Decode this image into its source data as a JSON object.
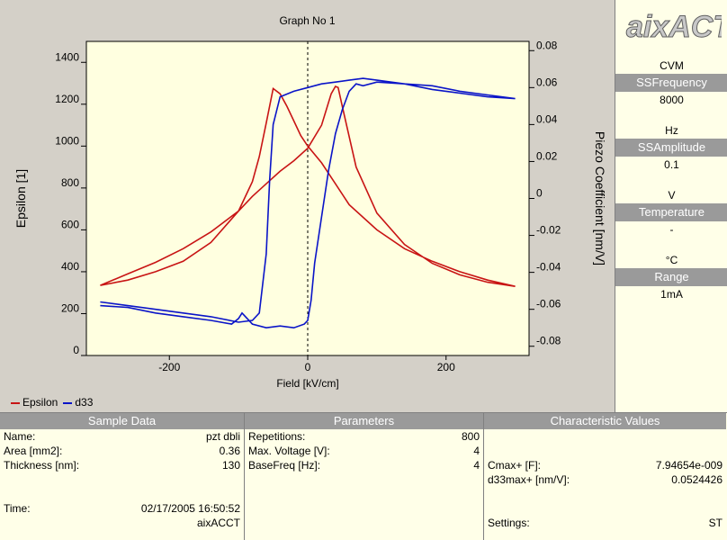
{
  "graph": {
    "title": "Graph No 1",
    "legend": [
      {
        "label": "Epsilon",
        "color": "#c81414"
      },
      {
        "label": "d33",
        "color": "#0a14c8"
      }
    ]
  },
  "chart_data": {
    "type": "line",
    "title": "Graph No 1",
    "xlabel": "Field [kV/cm]",
    "ylabel": "Epsilon [1]",
    "y2label": "Piezo Coefficient [nm/V]",
    "xlim": [
      -320,
      320
    ],
    "ylim": [
      0,
      1500
    ],
    "y2lim": [
      -0.085,
      0.085
    ],
    "xticks": [
      "-200",
      "0",
      "200"
    ],
    "xtick_values": [
      -200,
      0,
      200
    ],
    "yticks": [
      "0",
      "200",
      "400",
      "600",
      "800",
      "1000",
      "1200",
      "1400"
    ],
    "ytick_values": [
      0,
      200,
      400,
      600,
      800,
      1000,
      1200,
      1400
    ],
    "y2ticks": [
      "-0.08",
      "-0.06",
      "-0.04",
      "-0.02",
      "0",
      "0.02",
      "0.04",
      "0.06",
      "0.08"
    ],
    "y2tick_values": [
      -0.08,
      -0.06,
      -0.04,
      -0.02,
      0,
      0.02,
      0.04,
      0.06,
      0.08
    ],
    "grid": false,
    "vline_at": 0,
    "legend_position": "bottom-left",
    "series": [
      {
        "name": "Epsilon",
        "axis": "left",
        "color": "#c81414",
        "x": [
          -300,
          -260,
          -220,
          -180,
          -140,
          -100,
          -80,
          -70,
          -60,
          -50,
          -40,
          -30,
          -20,
          -10,
          0,
          20,
          40,
          60,
          100,
          140,
          180,
          220,
          260,
          300,
          260,
          220,
          180,
          140,
          100,
          70,
          50,
          44,
          40,
          34,
          20,
          0,
          -20,
          -40,
          -60,
          -80,
          -100,
          -140,
          -180,
          -220,
          -260,
          -300
        ],
        "y": [
          335,
          360,
          400,
          450,
          540,
          690,
          830,
          950,
          1110,
          1275,
          1250,
          1190,
          1120,
          1050,
          1000,
          920,
          820,
          720,
          600,
          510,
          450,
          400,
          360,
          330,
          350,
          385,
          440,
          530,
          680,
          900,
          1190,
          1280,
          1285,
          1250,
          1100,
          990,
          930,
          880,
          820,
          760,
          690,
          590,
          510,
          445,
          390,
          335
        ]
      },
      {
        "name": "d33",
        "axis": "right",
        "color": "#0a14c8",
        "x": [
          -300,
          -260,
          -220,
          -180,
          -140,
          -110,
          -100,
          -95,
          -80,
          -60,
          -40,
          -20,
          -5,
          0,
          5,
          10,
          20,
          30,
          40,
          50,
          60,
          70,
          80,
          100,
          140,
          180,
          220,
          260,
          300,
          260,
          220,
          180,
          140,
          100,
          80,
          60,
          40,
          20,
          0,
          -20,
          -40,
          -50,
          -55,
          -60,
          -70,
          -80,
          -100,
          -140,
          -180,
          -220,
          -260,
          -300
        ],
        "y": [
          -0.058,
          -0.059,
          -0.062,
          -0.064,
          -0.066,
          -0.068,
          -0.065,
          -0.062,
          -0.068,
          -0.07,
          -0.069,
          -0.07,
          -0.068,
          -0.066,
          -0.055,
          -0.035,
          -0.01,
          0.015,
          0.035,
          0.048,
          0.058,
          0.062,
          0.061,
          0.063,
          0.062,
          0.061,
          0.058,
          0.056,
          0.054,
          0.055,
          0.057,
          0.059,
          0.062,
          0.064,
          0.065,
          0.064,
          0.063,
          0.062,
          0.06,
          0.058,
          0.055,
          0.04,
          0.01,
          -0.03,
          -0.062,
          -0.066,
          -0.067,
          -0.064,
          -0.062,
          -0.06,
          -0.058,
          -0.056
        ]
      }
    ]
  },
  "side": {
    "logo": "aixACT",
    "mode": "CVM",
    "items": [
      {
        "label": "SSFrequency",
        "value": "8000",
        "unit": "Hz"
      },
      {
        "label": "SSAmplitude",
        "value": "0.1",
        "unit": "V"
      },
      {
        "label": "Temperature",
        "value": "-",
        "unit": "°C"
      },
      {
        "label": "Range",
        "value": "1mA",
        "unit": ""
      }
    ]
  },
  "sample_data": {
    "header": "Sample Data",
    "rows": [
      {
        "label": "Name:",
        "value": "pzt dbli"
      },
      {
        "label": "Area [mm2]:",
        "value": "0.36"
      },
      {
        "label": "Thickness [nm]:",
        "value": "130"
      },
      {
        "label": "",
        "value": ""
      },
      {
        "label": "",
        "value": ""
      },
      {
        "label": "Time:",
        "value": "02/17/2005 16:50:52"
      },
      {
        "label": "",
        "value": "aixACCT"
      }
    ]
  },
  "parameters": {
    "header": "Parameters",
    "rows": [
      {
        "label": "Repetitions:",
        "value": "800"
      },
      {
        "label": "Max. Voltage [V]:",
        "value": "4"
      },
      {
        "label": "BaseFreq [Hz]:",
        "value": "4"
      }
    ]
  },
  "characteristic": {
    "header": "Characteristic Values",
    "rows": [
      {
        "label": "",
        "value": ""
      },
      {
        "label": "",
        "value": ""
      },
      {
        "label": "Cmax+ [F]:",
        "value": "7.94654e-009"
      },
      {
        "label": "d33max+ [nm/V]:",
        "value": "0.0524426"
      },
      {
        "label": "",
        "value": ""
      },
      {
        "label": "",
        "value": ""
      },
      {
        "label": "Settings:",
        "value": "ST"
      }
    ]
  }
}
